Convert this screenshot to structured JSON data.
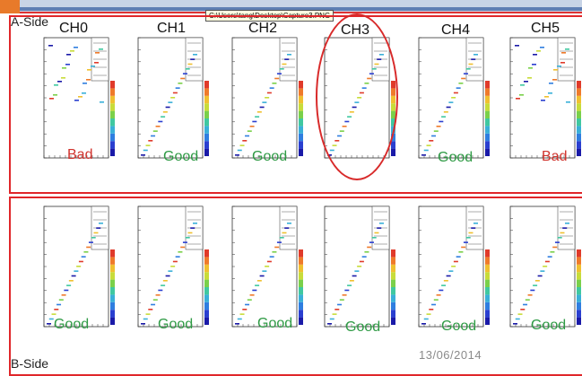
{
  "tooltip": "C:\\Users\\tang\\Desktop\\Capture3.PNG",
  "sides": {
    "a": "A-Side",
    "b": "B-Side"
  },
  "channels": [
    "CH0",
    "CH1",
    "CH2",
    "CH3",
    "CH4",
    "CH5"
  ],
  "row_a_status": [
    "Bad",
    "Good",
    "Good",
    "",
    "Good",
    "Bad"
  ],
  "row_b_status": [
    "Good",
    "Good",
    "Good",
    "Good",
    "Good",
    "Good"
  ],
  "date": "13/06/2014",
  "colors": {
    "good": "#2e9a44",
    "bad": "#d0322c",
    "frame": "#e0262a"
  },
  "highlight": "CH3"
}
